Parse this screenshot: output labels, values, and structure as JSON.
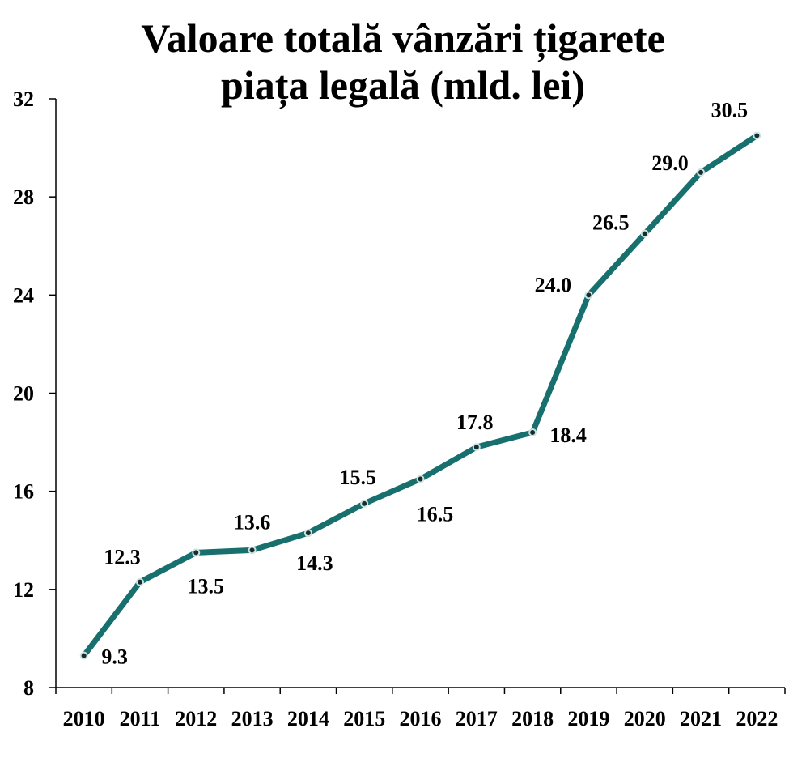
{
  "chart_data": {
    "type": "line",
    "title_lines": [
      "Valoare totală vânzări țigarete",
      "piața legală (mld. lei)"
    ],
    "categories": [
      "2010",
      "2011",
      "2012",
      "2013",
      "2014",
      "2015",
      "2016",
      "2017",
      "2018",
      "2019",
      "2020",
      "2021",
      "2022"
    ],
    "series": [
      {
        "values": [
          9.3,
          12.3,
          13.5,
          13.6,
          14.3,
          15.5,
          16.5,
          17.8,
          18.4,
          24.0,
          26.5,
          29.0,
          30.5
        ],
        "labels": [
          "9.3",
          "12.3",
          "13.5",
          "13.6",
          "14.3",
          "15.5",
          "16.5",
          "17.8",
          "18.4",
          "24.0",
          "26.5",
          "29.0",
          "30.5"
        ]
      }
    ],
    "ylim": [
      8,
      32
    ],
    "yticks": [
      8,
      12,
      16,
      20,
      24,
      28,
      32
    ],
    "grid": false,
    "legend": "none",
    "colors": {
      "line": "#17706E",
      "marker_fill": "#1B2A2A",
      "marker_stroke": "#C9E3E1"
    }
  }
}
